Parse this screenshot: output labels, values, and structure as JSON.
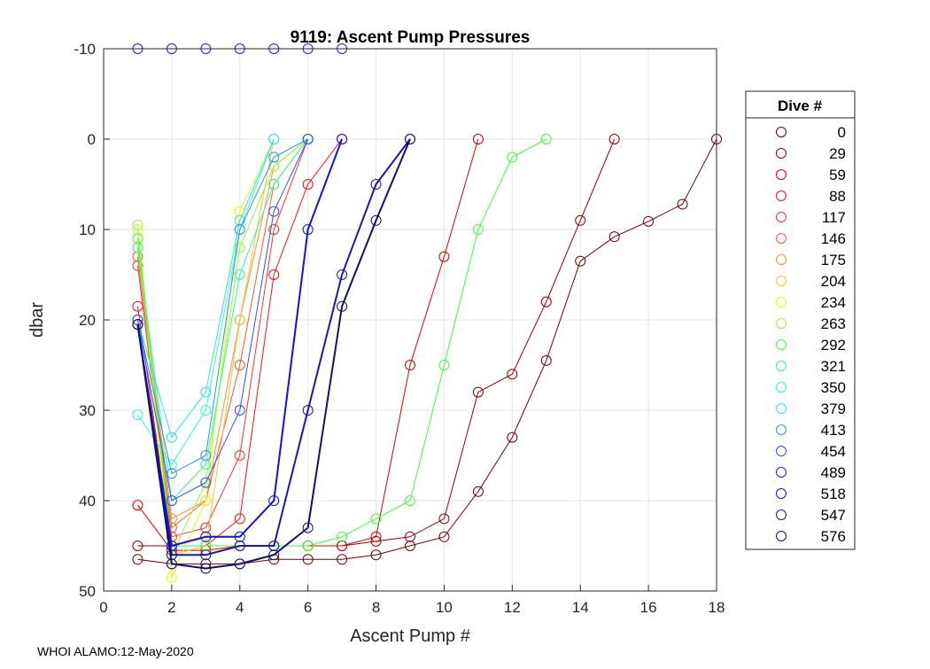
{
  "chart_data": {
    "type": "line",
    "title": "9119: Ascent Pump Pressures",
    "xlabel": "Ascent Pump #",
    "ylabel": "dbar",
    "xlim": [
      0,
      18
    ],
    "ylim": [
      -10,
      50
    ],
    "y_reversed": true,
    "xticks": [
      0,
      2,
      4,
      6,
      8,
      10,
      12,
      14,
      16,
      18
    ],
    "yticks": [
      -10,
      0,
      10,
      20,
      30,
      40,
      50
    ],
    "grid": true,
    "marker": "open-circle",
    "legend": {
      "title": "Dive #",
      "placement": "right-outside"
    },
    "series": [
      {
        "name": "0",
        "color": "#7a0000",
        "x": [
          1,
          2,
          3,
          4,
          5,
          6,
          7,
          8,
          9,
          10,
          11,
          12,
          13,
          14,
          15,
          16,
          17,
          18
        ],
        "y": [
          46.5,
          47,
          47,
          47,
          46.5,
          46.5,
          46.5,
          46,
          45,
          44,
          39,
          33,
          24.5,
          13.5,
          10.8,
          9.1,
          7.2,
          0
        ]
      },
      {
        "name": "29",
        "color": "#990000",
        "x": [
          1,
          2,
          3,
          4,
          5,
          6,
          7,
          8,
          9,
          10,
          11,
          12,
          13,
          14,
          15
        ],
        "y": [
          45,
          45,
          45,
          45,
          45,
          45,
          45,
          44.5,
          44,
          42,
          28,
          26,
          18,
          9,
          0
        ]
      },
      {
        "name": "59",
        "color": "#dd0000",
        "x": [
          1,
          2,
          3,
          4,
          5,
          6,
          7,
          8,
          9,
          10,
          11
        ],
        "y": [
          40.5,
          45.5,
          45.5,
          45,
          45,
          45,
          45,
          44,
          25,
          13,
          0
        ]
      },
      {
        "name": "88",
        "color": "#ff1010",
        "x": [
          1,
          2,
          3,
          4,
          5,
          6,
          7
        ],
        "y": [
          18.5,
          45,
          45,
          42,
          15,
          5,
          0
        ]
      },
      {
        "name": "117",
        "color": "#ff3030",
        "x": [
          1,
          2,
          3,
          4,
          5,
          6
        ],
        "y": [
          14,
          44,
          43,
          35,
          10,
          0
        ]
      },
      {
        "name": "146",
        "color": "#ff5a30",
        "x": [
          1,
          2,
          3,
          4,
          5,
          6
        ],
        "y": [
          13,
          43,
          40,
          25,
          5,
          0
        ]
      },
      {
        "name": "175",
        "color": "#ff8c30",
        "x": [
          1,
          2,
          3,
          4,
          5,
          6
        ],
        "y": [
          12,
          42,
          40,
          20,
          3,
          0
        ]
      },
      {
        "name": "204",
        "color": "#ffbf30",
        "x": [
          1,
          2,
          3,
          4,
          5
        ],
        "y": [
          11,
          46,
          45,
          20,
          0
        ]
      },
      {
        "name": "234",
        "color": "#e6ff10",
        "x": [
          1,
          2,
          3,
          4,
          5
        ],
        "y": [
          10,
          48.5,
          40,
          8,
          0
        ]
      },
      {
        "name": "263",
        "color": "#90ff30",
        "x": [
          1,
          2,
          3,
          4,
          5,
          6
        ],
        "y": [
          9.5,
          46,
          38,
          12,
          3,
          0
        ]
      },
      {
        "name": "292",
        "color": "#40ff40",
        "x": [
          1,
          2,
          3,
          4,
          5,
          6,
          7,
          8,
          9,
          10,
          11,
          12,
          13
        ],
        "y": [
          11,
          45,
          45,
          45,
          45,
          45,
          44,
          42,
          40,
          25,
          10,
          2,
          0
        ]
      },
      {
        "name": "321",
        "color": "#30ff90",
        "x": [
          1,
          2,
          3,
          4,
          5,
          6
        ],
        "y": [
          12,
          40,
          36,
          15,
          5,
          0
        ]
      },
      {
        "name": "350",
        "color": "#30ffd0",
        "x": [
          1,
          2,
          3,
          4,
          5
        ],
        "y": [
          30.5,
          36,
          30,
          10,
          0
        ]
      },
      {
        "name": "379",
        "color": "#30e0ff",
        "x": [
          1,
          2,
          3,
          4,
          5
        ],
        "y": [
          20,
          33,
          28,
          9,
          0
        ]
      },
      {
        "name": "413",
        "color": "#3090ff",
        "x": [
          1,
          2,
          3,
          4,
          5,
          6
        ],
        "y": [
          20,
          37,
          35,
          10,
          2,
          0
        ]
      },
      {
        "name": "454",
        "color": "#3050ff",
        "x": [
          1,
          2,
          3,
          4,
          5,
          6
        ],
        "y": [
          20,
          40,
          38,
          30,
          8,
          0
        ]
      },
      {
        "name": "489",
        "color": "#1020ff",
        "x": [
          1,
          2,
          3,
          4,
          5,
          6,
          7
        ],
        "y": [
          -10,
          -10,
          -10,
          -10,
          -10,
          -10,
          -10
        ]
      },
      {
        "name": "518",
        "color": "#1010e0",
        "x": [
          1,
          2,
          3,
          4,
          5,
          6,
          7
        ],
        "y": [
          20.5,
          45,
          44,
          44,
          40,
          10,
          0
        ]
      },
      {
        "name": "547",
        "color": "#1818b0",
        "x": [
          1,
          2,
          3,
          4,
          5,
          6,
          7,
          8,
          9
        ],
        "y": [
          20.5,
          46,
          46,
          45,
          45,
          30,
          15,
          5,
          0
        ]
      },
      {
        "name": "576",
        "color": "#101070",
        "x": [
          1,
          2,
          3,
          4,
          5,
          6,
          7,
          8,
          9
        ],
        "y": [
          20.5,
          47,
          47.5,
          47,
          46,
          43,
          18.5,
          9,
          0
        ]
      }
    ]
  },
  "footer": "WHOI ALAMO:12-May-2020"
}
